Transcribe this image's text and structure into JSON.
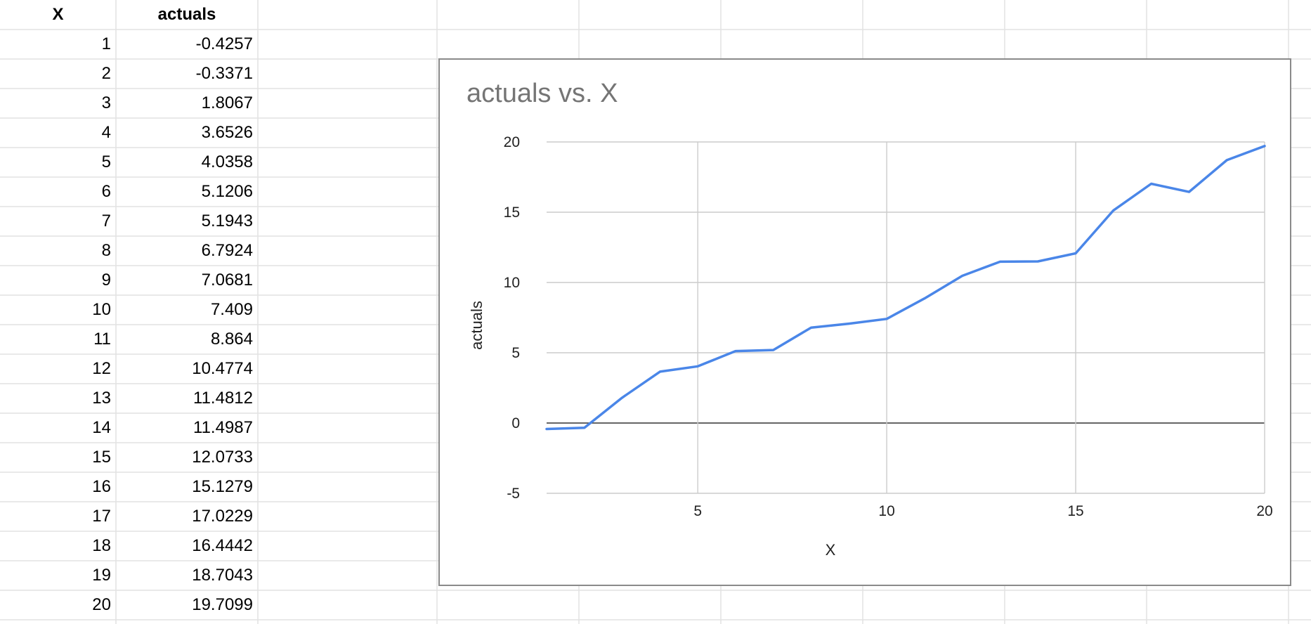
{
  "table": {
    "headers": [
      "X",
      "actuals"
    ],
    "rows": [
      [
        "1",
        "-0.4257"
      ],
      [
        "2",
        "-0.3371"
      ],
      [
        "3",
        "1.8067"
      ],
      [
        "4",
        "3.6526"
      ],
      [
        "5",
        "4.0358"
      ],
      [
        "6",
        "5.1206"
      ],
      [
        "7",
        "5.1943"
      ],
      [
        "8",
        "6.7924"
      ],
      [
        "9",
        "7.0681"
      ],
      [
        "10",
        "7.409"
      ],
      [
        "11",
        "8.864"
      ],
      [
        "12",
        "10.4774"
      ],
      [
        "13",
        "11.4812"
      ],
      [
        "14",
        "11.4987"
      ],
      [
        "15",
        "12.0733"
      ],
      [
        "16",
        "15.1279"
      ],
      [
        "17",
        "17.0229"
      ],
      [
        "18",
        "16.4442"
      ],
      [
        "19",
        "18.7043"
      ],
      [
        "20",
        "19.7099"
      ]
    ]
  },
  "chart_data": {
    "type": "line",
    "title": "actuals vs. X",
    "xlabel": "X",
    "ylabel": "actuals",
    "x": [
      1,
      2,
      3,
      4,
      5,
      6,
      7,
      8,
      9,
      10,
      11,
      12,
      13,
      14,
      15,
      16,
      17,
      18,
      19,
      20
    ],
    "series": [
      {
        "values": [
          -0.4257,
          -0.3371,
          1.8067,
          3.6526,
          4.0358,
          5.1206,
          5.1943,
          6.7924,
          7.0681,
          7.409,
          8.864,
          10.4774,
          11.4812,
          11.4987,
          12.0733,
          15.1279,
          17.0229,
          16.4442,
          18.7043,
          19.7099
        ],
        "color": "#4a86e8"
      }
    ],
    "xlim": [
      1,
      20
    ],
    "ylim": [
      -5,
      20
    ],
    "xticks": [
      5,
      10,
      15,
      20
    ],
    "yticks": [
      -5,
      0,
      5,
      10,
      15,
      20
    ],
    "grid": true,
    "legend": "none",
    "colors": {
      "line": "#4a86e8",
      "grid": "#cccccc",
      "zero_line": "#333333",
      "title": "#757575"
    }
  }
}
